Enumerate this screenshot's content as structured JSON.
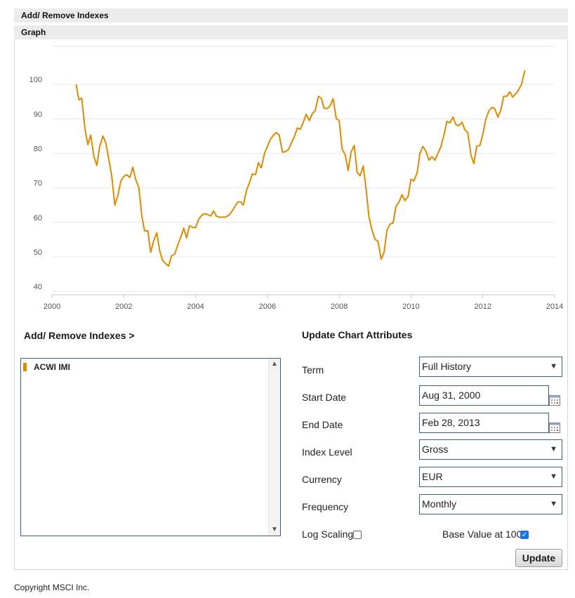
{
  "header": {
    "add_remove": "Add/ Remove Indexes",
    "graph": "Graph"
  },
  "chart_data": {
    "type": "line",
    "x_ticks": [
      "2000",
      "2002",
      "2004",
      "2006",
      "2008",
      "2010",
      "2012",
      "2014"
    ],
    "y_ticks": [
      "40",
      "50",
      "60",
      "70",
      "80",
      "90",
      "100"
    ],
    "xlim": [
      2000,
      2014
    ],
    "ylim": [
      39,
      111
    ],
    "grid": "horizontal",
    "series": [
      {
        "color": "#e08a00",
        "points": [
          [
            2000.67,
            100
          ],
          [
            2000.75,
            95.5
          ],
          [
            2000.83,
            96
          ],
          [
            2000.92,
            87
          ],
          [
            2001.0,
            82.5
          ],
          [
            2001.08,
            85.3
          ],
          [
            2001.17,
            79
          ],
          [
            2001.25,
            76.5
          ],
          [
            2001.33,
            82
          ],
          [
            2001.42,
            85
          ],
          [
            2001.5,
            83
          ],
          [
            2001.58,
            78.5
          ],
          [
            2001.67,
            73
          ],
          [
            2001.75,
            65
          ],
          [
            2001.83,
            67.5
          ],
          [
            2001.92,
            72
          ],
          [
            2002.0,
            73.3
          ],
          [
            2002.08,
            73.8
          ],
          [
            2002.17,
            73
          ],
          [
            2002.25,
            76
          ],
          [
            2002.33,
            72.5
          ],
          [
            2002.42,
            70
          ],
          [
            2002.5,
            62
          ],
          [
            2002.58,
            57.5
          ],
          [
            2002.67,
            57.5
          ],
          [
            2002.75,
            51.3
          ],
          [
            2002.83,
            54.5
          ],
          [
            2002.92,
            57
          ],
          [
            2003.0,
            51.8
          ],
          [
            2003.08,
            49
          ],
          [
            2003.17,
            48
          ],
          [
            2003.25,
            47.3
          ],
          [
            2003.33,
            50.3
          ],
          [
            2003.42,
            50.8
          ],
          [
            2003.5,
            53.3
          ],
          [
            2003.58,
            55.5
          ],
          [
            2003.67,
            58.3
          ],
          [
            2003.75,
            55.5
          ],
          [
            2003.83,
            59
          ],
          [
            2003.92,
            58.5
          ],
          [
            2004.0,
            58.5
          ],
          [
            2004.08,
            60.8
          ],
          [
            2004.17,
            62
          ],
          [
            2004.25,
            62.5
          ],
          [
            2004.33,
            62.3
          ],
          [
            2004.42,
            61.8
          ],
          [
            2004.5,
            63.3
          ],
          [
            2004.58,
            61.8
          ],
          [
            2004.67,
            61.5
          ],
          [
            2004.75,
            61.5
          ],
          [
            2004.83,
            61.5
          ],
          [
            2004.92,
            62
          ],
          [
            2005.0,
            63
          ],
          [
            2005.08,
            64.3
          ],
          [
            2005.17,
            65.8
          ],
          [
            2005.25,
            66
          ],
          [
            2005.33,
            65
          ],
          [
            2005.42,
            69.3
          ],
          [
            2005.5,
            71.5
          ],
          [
            2005.58,
            74
          ],
          [
            2005.67,
            73.8
          ],
          [
            2005.75,
            77.3
          ],
          [
            2005.83,
            75.8
          ],
          [
            2005.92,
            80
          ],
          [
            2006.0,
            82
          ],
          [
            2006.08,
            84
          ],
          [
            2006.17,
            85.3
          ],
          [
            2006.25,
            86
          ],
          [
            2006.33,
            85.3
          ],
          [
            2006.42,
            80.3
          ],
          [
            2006.5,
            80.5
          ],
          [
            2006.58,
            81
          ],
          [
            2006.67,
            83
          ],
          [
            2006.75,
            84.8
          ],
          [
            2006.83,
            87.3
          ],
          [
            2006.92,
            87
          ],
          [
            2007.0,
            89
          ],
          [
            2007.08,
            91.3
          ],
          [
            2007.17,
            89.5
          ],
          [
            2007.25,
            91.5
          ],
          [
            2007.33,
            92.3
          ],
          [
            2007.42,
            96.5
          ],
          [
            2007.5,
            96
          ],
          [
            2007.58,
            93
          ],
          [
            2007.67,
            93
          ],
          [
            2007.75,
            93.8
          ],
          [
            2007.83,
            95.8
          ],
          [
            2007.92,
            90
          ],
          [
            2008.0,
            89.5
          ],
          [
            2008.08,
            81.3
          ],
          [
            2008.17,
            79.5
          ],
          [
            2008.25,
            75
          ],
          [
            2008.33,
            80.3
          ],
          [
            2008.42,
            82.3
          ],
          [
            2008.5,
            74.5
          ],
          [
            2008.58,
            73.5
          ],
          [
            2008.67,
            76.3
          ],
          [
            2008.75,
            69.5
          ],
          [
            2008.83,
            61.5
          ],
          [
            2008.92,
            57.5
          ],
          [
            2009.0,
            55
          ],
          [
            2009.08,
            54.5
          ],
          [
            2009.17,
            49.3
          ],
          [
            2009.25,
            51.3
          ],
          [
            2009.33,
            57.8
          ],
          [
            2009.42,
            59.5
          ],
          [
            2009.5,
            59.8
          ],
          [
            2009.58,
            64.5
          ],
          [
            2009.67,
            66
          ],
          [
            2009.75,
            68
          ],
          [
            2009.83,
            66.3
          ],
          [
            2009.92,
            67.5
          ],
          [
            2010.0,
            72.5
          ],
          [
            2010.08,
            72
          ],
          [
            2010.17,
            74.3
          ],
          [
            2010.25,
            80
          ],
          [
            2010.33,
            82
          ],
          [
            2010.42,
            80.5
          ],
          [
            2010.5,
            78
          ],
          [
            2010.58,
            79
          ],
          [
            2010.67,
            78
          ],
          [
            2010.75,
            80
          ],
          [
            2010.83,
            81.8
          ],
          [
            2010.92,
            85.5
          ],
          [
            2011.0,
            89.3
          ],
          [
            2011.08,
            88.8
          ],
          [
            2011.17,
            90.5
          ],
          [
            2011.25,
            88.3
          ],
          [
            2011.33,
            88
          ],
          [
            2011.42,
            89
          ],
          [
            2011.5,
            86.8
          ],
          [
            2011.58,
            86
          ],
          [
            2011.67,
            79.5
          ],
          [
            2011.75,
            77
          ],
          [
            2011.83,
            82
          ],
          [
            2011.92,
            82.3
          ],
          [
            2012.0,
            85.5
          ],
          [
            2012.08,
            89.8
          ],
          [
            2012.17,
            92.3
          ],
          [
            2012.25,
            93.3
          ],
          [
            2012.33,
            93
          ],
          [
            2012.42,
            90.5
          ],
          [
            2012.5,
            92.5
          ],
          [
            2012.58,
            96.5
          ],
          [
            2012.67,
            96.5
          ],
          [
            2012.75,
            97.8
          ],
          [
            2012.83,
            96.3
          ],
          [
            2012.92,
            97.3
          ],
          [
            2013.0,
            98.5
          ],
          [
            2013.08,
            100
          ],
          [
            2013.17,
            104
          ]
        ]
      }
    ]
  },
  "indexes": {
    "title": "Add/ Remove Indexes >",
    "items": [
      {
        "label": "ACWI IMI",
        "color": "#e08a00"
      }
    ]
  },
  "attributes": {
    "title": "Update Chart Attributes",
    "term_label": "Term",
    "term_value": "Full History",
    "start_label": "Start Date",
    "start_value": "Aug 31, 2000",
    "end_label": "End Date",
    "end_value": "Feb 28, 2013",
    "level_label": "Index Level",
    "level_value": "Gross",
    "currency_label": "Currency",
    "currency_value": "EUR",
    "frequency_label": "Frequency",
    "frequency_value": "Monthly",
    "log_label": "Log Scaling",
    "log_checked": false,
    "base_label": "Base Value at 100",
    "base_checked": true,
    "update_label": "Update"
  },
  "footer": {
    "copyright": "Copyright MSCI Inc."
  }
}
